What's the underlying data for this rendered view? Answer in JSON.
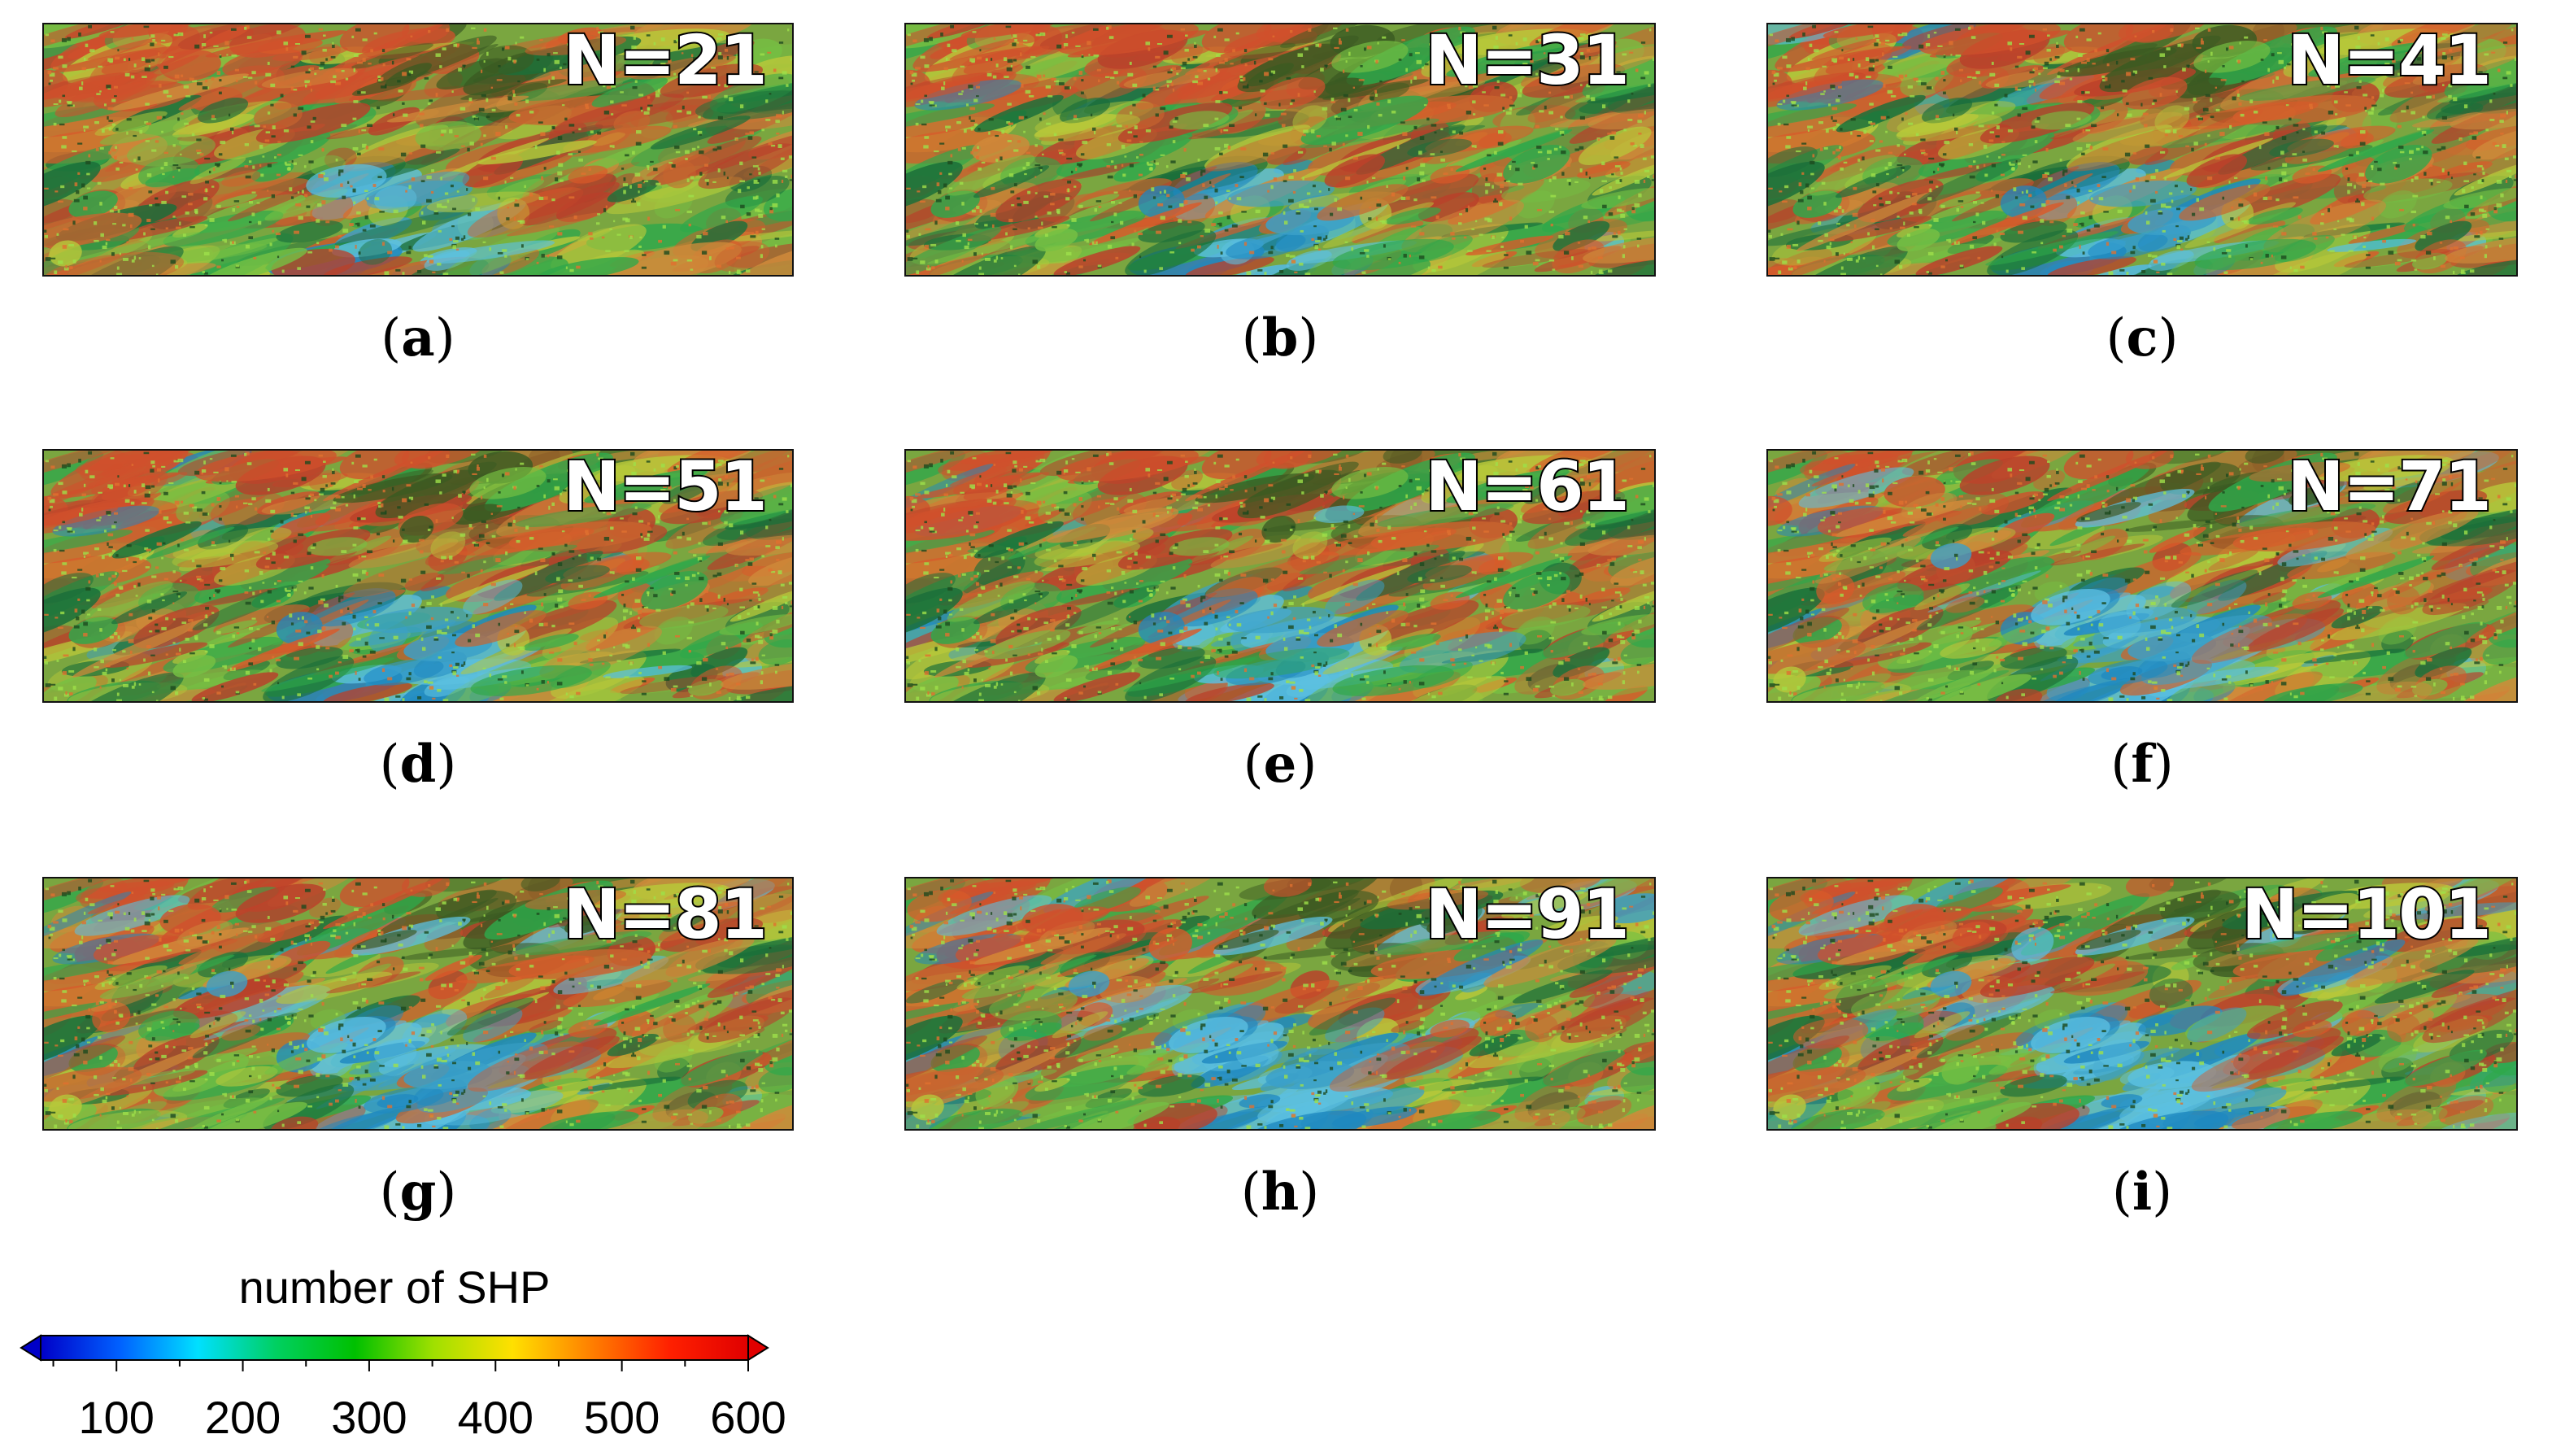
{
  "panels": [
    {
      "letter": "a",
      "n_label": "N=21"
    },
    {
      "letter": "b",
      "n_label": "N=31"
    },
    {
      "letter": "c",
      "n_label": "N=41"
    },
    {
      "letter": "d",
      "n_label": "N=51"
    },
    {
      "letter": "e",
      "n_label": "N=61"
    },
    {
      "letter": "f",
      "n_label": "N=71"
    },
    {
      "letter": "g",
      "n_label": "N=81"
    },
    {
      "letter": "h",
      "n_label": "N=91"
    },
    {
      "letter": "i",
      "n_label": "N=101"
    }
  ],
  "colorbar": {
    "title": "number of SHP",
    "min": 40,
    "max": 600,
    "tick_labels": [
      "100",
      "200",
      "300",
      "400",
      "500",
      "600"
    ],
    "tick_values": [
      100,
      200,
      300,
      400,
      500,
      600
    ],
    "colors": [
      "#0000c8",
      "#0060ff",
      "#00e0ff",
      "#00d060",
      "#00c000",
      "#a0e000",
      "#ffe000",
      "#ff8000",
      "#ff2000",
      "#e00000"
    ]
  }
}
